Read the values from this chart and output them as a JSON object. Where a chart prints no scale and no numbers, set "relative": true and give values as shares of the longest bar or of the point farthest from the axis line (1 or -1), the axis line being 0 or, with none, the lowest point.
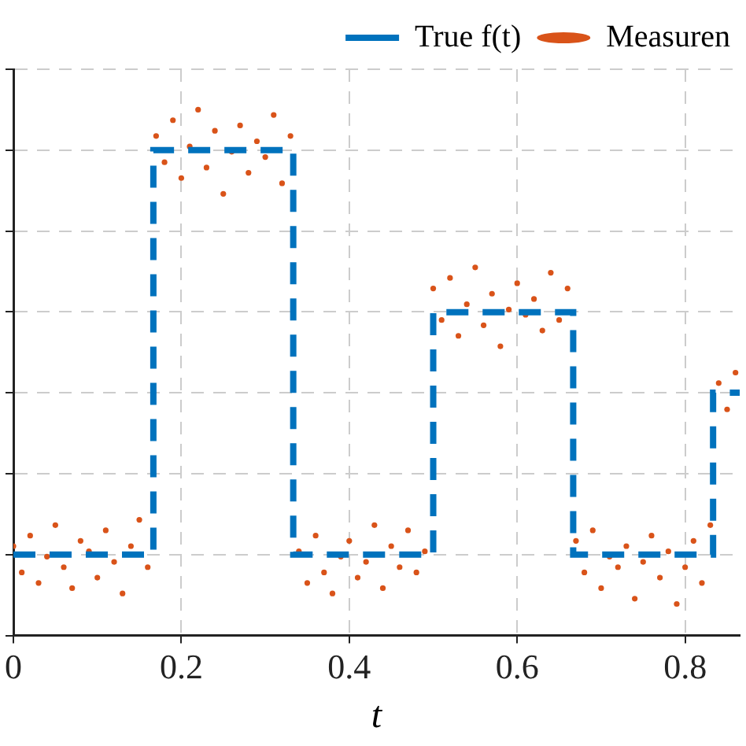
{
  "chart_data": {
    "type": "scatter",
    "xlabel": "t",
    "relative": true,
    "xlim": [
      0,
      0.865
    ],
    "xticks": [
      0,
      0.2,
      0.4,
      0.6,
      0.8
    ],
    "tick_labels": "x",
    "grid": true,
    "legend": "top right",
    "series": [
      {
        "name": "True f(t)",
        "type": "step",
        "color": "#0072bd",
        "line_style": "dashed",
        "marker": "none",
        "x": [
          0,
          0.1667,
          0.3333,
          0.5,
          0.6667,
          0.8333,
          0.865
        ],
        "values": [
          0.154,
          0.923,
          0.154,
          0.615,
          0.154,
          0.462,
          0.462
        ]
      },
      {
        "name": "Measuren",
        "color": "#d95319",
        "marker": "circle",
        "x": [
          0,
          0.01,
          0.02,
          0.03,
          0.04,
          0.05,
          0.06,
          0.07,
          0.08,
          0.09,
          0.1,
          0.11,
          0.12,
          0.13,
          0.14,
          0.15,
          0.16,
          0.17,
          0.18,
          0.19,
          0.2,
          0.21,
          0.22,
          0.23,
          0.24,
          0.25,
          0.26,
          0.27,
          0.28,
          0.29,
          0.3,
          0.31,
          0.32,
          0.33,
          0.34,
          0.35,
          0.36,
          0.37,
          0.38,
          0.39,
          0.4,
          0.41,
          0.42,
          0.43,
          0.44,
          0.45,
          0.46,
          0.47,
          0.48,
          0.49,
          0.5,
          0.51,
          0.52,
          0.53,
          0.54,
          0.55,
          0.56,
          0.57,
          0.58,
          0.59,
          0.6,
          0.61,
          0.62,
          0.63,
          0.64,
          0.65,
          0.66,
          0.67,
          0.68,
          0.69,
          0.7,
          0.71,
          0.72,
          0.73,
          0.74,
          0.75,
          0.76,
          0.77,
          0.78,
          0.79,
          0.8,
          0.81,
          0.82,
          0.83,
          0.84,
          0.85,
          0.86
        ],
        "values": [
          0.17,
          0.12,
          0.19,
          0.1,
          0.15,
          0.21,
          0.13,
          0.09,
          0.18,
          0.16,
          0.11,
          0.2,
          0.14,
          0.08,
          0.17,
          0.22,
          0.13,
          0.95,
          0.9,
          0.98,
          0.87,
          0.93,
          1.0,
          0.89,
          0.96,
          0.84,
          0.92,
          0.97,
          0.88,
          0.94,
          0.91,
          0.99,
          0.86,
          0.95,
          0.16,
          0.1,
          0.19,
          0.12,
          0.08,
          0.15,
          0.18,
          0.11,
          0.14,
          0.21,
          0.09,
          0.17,
          0.13,
          0.2,
          0.12,
          0.16,
          0.66,
          0.6,
          0.68,
          0.57,
          0.63,
          0.7,
          0.59,
          0.65,
          0.55,
          0.62,
          0.67,
          0.61,
          0.64,
          0.58,
          0.69,
          0.6,
          0.66,
          0.18,
          0.12,
          0.2,
          0.09,
          0.15,
          0.13,
          0.17,
          0.07,
          0.14,
          0.19,
          0.11,
          0.16,
          0.06,
          0.13,
          0.18,
          0.1,
          0.21,
          0.48,
          0.43,
          0.5
        ]
      }
    ]
  }
}
